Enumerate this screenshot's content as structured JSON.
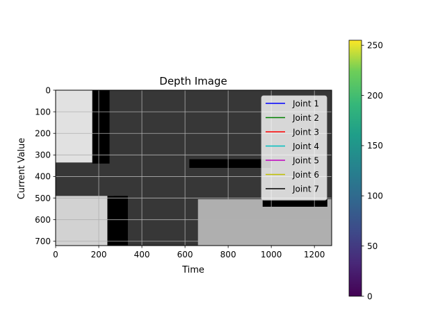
{
  "chart_data": {
    "type": "heatmap",
    "title": "Depth Image",
    "xlabel": "Time",
    "ylabel": "Current Value",
    "xlim": [
      0,
      1280
    ],
    "ylim": [
      720,
      0
    ],
    "x_ticks": [
      0,
      200,
      400,
      600,
      800,
      1000,
      1200
    ],
    "y_ticks": [
      0,
      100,
      200,
      300,
      400,
      500,
      600,
      700
    ],
    "grid": true,
    "legend_position": "upper-right",
    "legend": [
      {
        "label": "Joint 1",
        "color": "#0000ff"
      },
      {
        "label": "Joint 2",
        "color": "#008000"
      },
      {
        "label": "Joint 3",
        "color": "#ff0000"
      },
      {
        "label": "Joint 4",
        "color": "#00bfbf"
      },
      {
        "label": "Joint 5",
        "color": "#bf00bf"
      },
      {
        "label": "Joint 6",
        "color": "#bfbf00"
      },
      {
        "label": "Joint 7",
        "color": "#000000"
      }
    ],
    "colorbar": {
      "colormap": "viridis",
      "range": [
        0,
        255
      ],
      "ticks": [
        0,
        50,
        100,
        150,
        200,
        250
      ]
    },
    "regions": [
      {
        "name": "background",
        "x": [
          0,
          1280
        ],
        "y": [
          0,
          720
        ],
        "value": 55
      },
      {
        "name": "bright-top-left",
        "x": [
          0,
          180
        ],
        "y": [
          0,
          335
        ],
        "value": 225
      },
      {
        "name": "bright-bottom-left",
        "x": [
          0,
          270
        ],
        "y": [
          490,
          720
        ],
        "value": 210
      },
      {
        "name": "bright-bottom-right",
        "x": [
          660,
          1280
        ],
        "y": [
          505,
          720
        ],
        "value": 175
      },
      {
        "name": "dark-strip-upper",
        "x": [
          170,
          250
        ],
        "y": [
          0,
          340
        ],
        "value": 0
      },
      {
        "name": "dark-strip-lower",
        "x": [
          240,
          335
        ],
        "y": [
          490,
          720
        ],
        "value": 0
      },
      {
        "name": "dark-band-middle",
        "x": [
          620,
          1000
        ],
        "y": [
          320,
          360
        ],
        "value": 0
      },
      {
        "name": "dark-band-lower-right",
        "x": [
          960,
          1260
        ],
        "y": [
          505,
          540
        ],
        "value": 0
      }
    ]
  }
}
